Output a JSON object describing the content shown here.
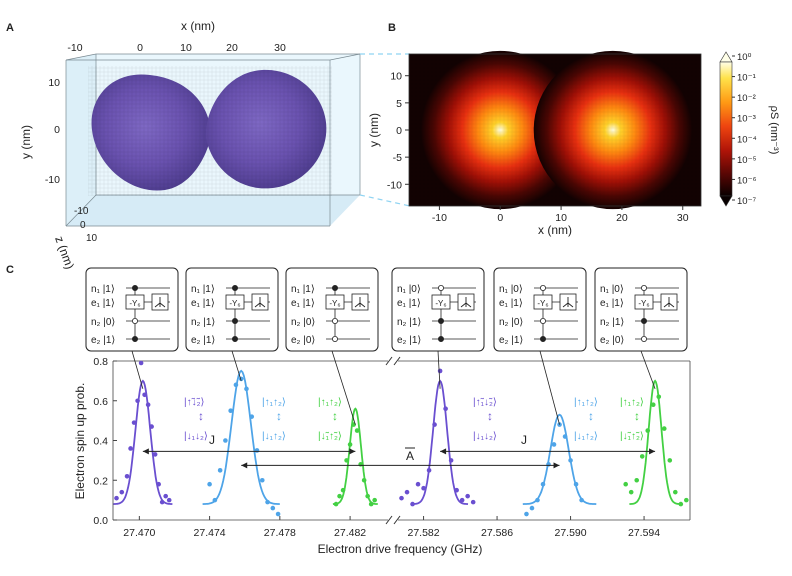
{
  "panels": {
    "a": {
      "letter": "A",
      "xlabel": "x (nm)",
      "ylabel": "y (nm)",
      "zlabel": "z (nm)",
      "xticks": [
        "-10",
        "0",
        "10",
        "20",
        "30"
      ],
      "yticks": [
        "10",
        "0",
        "-10"
      ],
      "zticks": [
        "-10",
        "0",
        "10"
      ]
    },
    "b": {
      "letter": "B",
      "xlabel": "x (nm)",
      "ylabel": "y (nm)",
      "colorbar_label": "ρS (nm⁻³)",
      "colorbar_ticks": [
        "10⁰",
        "10⁻¹",
        "10⁻²",
        "10⁻³",
        "10⁻⁴",
        "10⁻⁵",
        "10⁻⁶",
        "10⁻⁷"
      ]
    },
    "c": {
      "letter": "C",
      "circuits": [
        {
          "rows": [
            "n₁ |1⟩",
            "e₁ |1⟩",
            "n₂ |0⟩",
            "e₂ |1⟩"
          ],
          "gate": "-Y₆",
          "gate_row": 1
        },
        {
          "rows": [
            "n₁ |1⟩",
            "e₁ |1⟩",
            "n₂ |1⟩",
            "e₂ |1⟩"
          ],
          "gate": "-Y₆",
          "gate_row": 1
        },
        {
          "rows": [
            "n₁ |1⟩",
            "e₁ |1⟩",
            "n₂ |0⟩",
            "e₂ |0⟩"
          ],
          "gate": "-Y₆",
          "gate_row": 1
        },
        {
          "rows": [
            "n₁ |0⟩",
            "e₁ |1⟩",
            "n₂ |1⟩",
            "e₂ |1⟩"
          ],
          "gate": "-Y₆",
          "gate_row": 1
        },
        {
          "rows": [
            "n₁ |0⟩",
            "e₁ |1⟩",
            "n₂ |0⟩",
            "e₂ |1⟩"
          ],
          "gate": "-Y₆",
          "gate_row": 1
        },
        {
          "rows": [
            "n₁ |0⟩",
            "e₁ |1⟩",
            "n₂ |1⟩",
            "e₂ |0⟩"
          ],
          "gate": "-Y₆",
          "gate_row": 1
        }
      ],
      "state_labels": [
        {
          "top": "|↑̃↓̃₂⟩",
          "bottom": "|↓₁↓₂⟩",
          "color": "#6a4fd0"
        },
        {
          "top": "|↑₁↑₂⟩",
          "bottom": "|↓₁↑₂⟩",
          "color": "#4ea4e8"
        },
        {
          "top": "|↑₁↑₂⟩",
          "bottom": "|↓̃₁↑̃₂⟩",
          "color": "#43d043"
        },
        {
          "top": "|↑̃₁↓̃₂⟩",
          "bottom": "|↓₁↓₂⟩",
          "color": "#6a4fd0"
        },
        {
          "top": "|↑₁↑₂⟩",
          "bottom": "|↓₁↑₂⟩",
          "color": "#4ea4e8"
        },
        {
          "top": "|↑₁↑₂⟩",
          "bottom": "|↓̃₁↑̃₂⟩",
          "color": "#43d043"
        }
      ],
      "arrow_labels": {
        "j_left": "J",
        "j_right": "J",
        "a": "A"
      }
    }
  },
  "chart_data": [
    {
      "type": "heatmap",
      "panel": "A",
      "description": "3D isosurface of two overlapping spherical electron densities",
      "x_range": [
        -13,
        33
      ],
      "y_range": [
        -15,
        15
      ],
      "z_range": [
        -10,
        10
      ],
      "centers_x": [
        0,
        18.5
      ],
      "colors": {
        "density": "#6a52b0",
        "box": "#bfe4f5"
      }
    },
    {
      "type": "heatmap",
      "panel": "B",
      "xlabel": "x (nm)",
      "ylabel": "y (nm)",
      "x_range": [
        -15,
        33
      ],
      "y_range": [
        -14,
        14
      ],
      "xticks": [
        -10,
        0,
        10,
        20,
        30
      ],
      "yticks": [
        10,
        5,
        0,
        -5,
        -10
      ],
      "centers_x": [
        0,
        18.5
      ],
      "colorscale": "log",
      "clim": [
        1e-07,
        1
      ]
    },
    {
      "type": "scatter",
      "panel": "C",
      "xlabel": "Electron drive frequency (GHz)",
      "ylabel": "Electron spin up prob.",
      "ylim": [
        0,
        0.8
      ],
      "yticks": [
        0.0,
        0.2,
        0.4,
        0.6,
        0.8
      ],
      "segments": [
        {
          "xlim": [
            27.4685,
            27.4845
          ],
          "xticks": [
            27.47,
            27.474,
            27.478,
            27.482
          ]
        },
        {
          "xlim": [
            27.5805,
            27.5965
          ],
          "xticks": [
            27.582,
            27.586,
            27.59,
            27.594
          ]
        }
      ],
      "series": [
        {
          "color": "#6a4fd0",
          "center": 27.4702,
          "amp": 0.62,
          "width": 0.00042,
          "x": [
            27.4687,
            27.469,
            27.4693,
            27.4695,
            27.4697,
            27.4699,
            27.4701,
            27.4703,
            27.4705,
            27.4707,
            27.4709,
            27.4711,
            27.4713,
            27.4715,
            27.4717
          ],
          "y": [
            0.11,
            0.14,
            0.22,
            0.36,
            0.49,
            0.6,
            0.79,
            0.63,
            0.58,
            0.47,
            0.33,
            0.18,
            0.09,
            0.12,
            0.1
          ]
        },
        {
          "color": "#4ea4e8",
          "center": 27.4758,
          "amp": 0.67,
          "width": 0.00055,
          "x": [
            27.474,
            27.4743,
            27.4746,
            27.4749,
            27.4752,
            27.4755,
            27.4758,
            27.4761,
            27.4764,
            27.4767,
            27.477,
            27.4773,
            27.4776,
            27.4779
          ],
          "y": [
            0.18,
            0.1,
            0.25,
            0.4,
            0.55,
            0.68,
            0.71,
            0.66,
            0.52,
            0.35,
            0.2,
            0.09,
            0.06,
            0.03
          ]
        },
        {
          "color": "#43d043",
          "center": 27.4823,
          "amp": 0.48,
          "width": 0.00032,
          "x": [
            27.4812,
            27.4814,
            27.4816,
            27.4818,
            27.482,
            27.4822,
            27.4824,
            27.4826,
            27.4828,
            27.483,
            27.4832,
            27.4834
          ],
          "y": [
            0.08,
            0.12,
            0.15,
            0.3,
            0.38,
            0.48,
            0.45,
            0.28,
            0.2,
            0.12,
            0.08,
            0.1
          ]
        },
        {
          "color": "#6a4fd0",
          "center": 27.5829,
          "amp": 0.62,
          "width": 0.00038,
          "x": [
            27.5808,
            27.5811,
            27.5814,
            27.5817,
            27.582,
            27.5823,
            27.5826,
            27.5829,
            27.5832,
            27.5835,
            27.5838,
            27.5841,
            27.5844,
            27.5847
          ],
          "y": [
            0.11,
            0.14,
            0.08,
            0.18,
            0.16,
            0.25,
            0.48,
            0.75,
            0.56,
            0.3,
            0.15,
            0.1,
            0.12,
            0.09
          ]
        },
        {
          "color": "#4ea4e8",
          "center": 27.5894,
          "amp": 0.45,
          "width": 0.0005,
          "x": [
            27.5876,
            27.5879,
            27.5882,
            27.5885,
            27.5888,
            27.5891,
            27.5894,
            27.5897,
            27.59,
            27.5903,
            27.5906
          ],
          "y": [
            0.03,
            0.06,
            0.1,
            0.18,
            0.28,
            0.38,
            0.48,
            0.42,
            0.3,
            0.18,
            0.1
          ]
        },
        {
          "color": "#43d043",
          "center": 27.5946,
          "amp": 0.62,
          "width": 0.00035,
          "x": [
            27.593,
            27.5933,
            27.5936,
            27.5939,
            27.5942,
            27.5945,
            27.5948,
            27.5951,
            27.5954,
            27.5957,
            27.596,
            27.5963
          ],
          "y": [
            0.18,
            0.14,
            0.2,
            0.32,
            0.45,
            0.58,
            0.62,
            0.46,
            0.3,
            0.14,
            0.08,
            0.1
          ]
        }
      ]
    }
  ]
}
